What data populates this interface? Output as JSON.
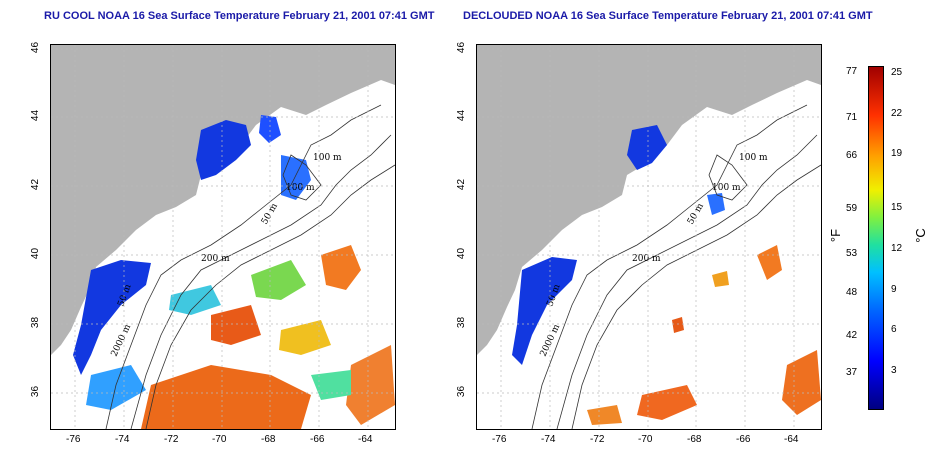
{
  "left_panel": {
    "title": "RU COOL NOAA 16 Sea Surface Temperature February 21, 2001 07:41 GMT",
    "contours": [
      "100 m",
      "100 m",
      "50 m",
      "200 m",
      "50 m",
      "2000 m"
    ]
  },
  "right_panel": {
    "title": "DECLOUDED NOAA 16 Sea Surface Temperature February 21, 2001 07:41 GMT",
    "contours": [
      "100 m",
      "100 m",
      "50 m",
      "200 m",
      "50 m",
      "2000 m"
    ]
  },
  "axes": {
    "x_ticks": [
      "-76",
      "-74",
      "-72",
      "-70",
      "-68",
      "-66",
      "-64"
    ],
    "y_ticks": [
      "46",
      "44",
      "42",
      "40",
      "38",
      "36"
    ]
  },
  "colorbar": {
    "fahrenheit_label": "°F",
    "celsius_label": "°C",
    "fahrenheit_ticks": [
      "77",
      "71",
      "66",
      "59",
      "53",
      "48",
      "42",
      "37"
    ],
    "celsius_ticks": [
      "25",
      "22",
      "19",
      "15",
      "12",
      "9",
      "6",
      "3"
    ]
  },
  "colors": {
    "land": "#b4b4b4",
    "title_text": "#1a1aa8",
    "cold": "#1030e0",
    "warm": "#f07020",
    "contour": "#333333"
  }
}
